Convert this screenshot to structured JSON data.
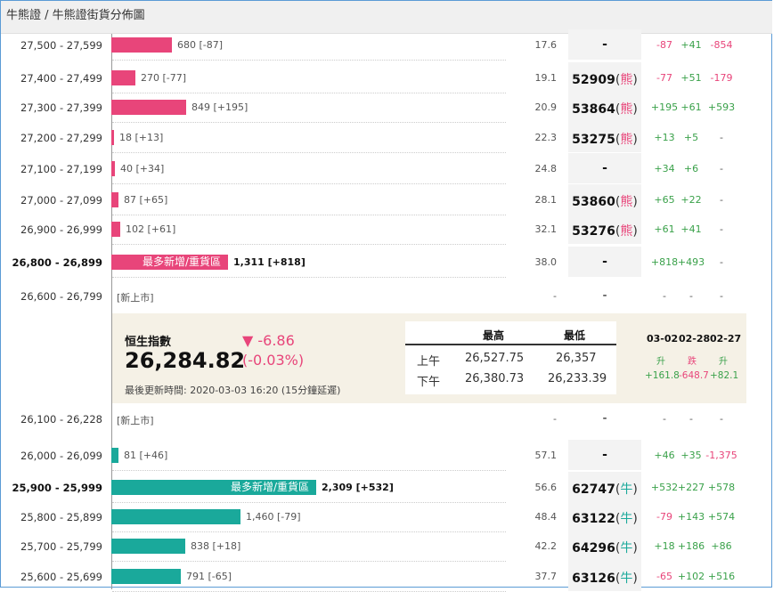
{
  "breadcrumb": "牛熊證 / 牛熊證街貨分佈圖",
  "colors": {
    "bear": "#e8457a",
    "bull": "#1aa99b",
    "up": "#3aa14a",
    "down": "#e8457a",
    "panel": "#f5f1e6"
  },
  "bear_rows": [
    {
      "range": "27,500 - 27,599",
      "count": "680 [-87]",
      "pct": "17.6",
      "code": "-",
      "tag": "",
      "c1": "-87",
      "c2": "+41",
      "c3": "-854",
      "bar_fraction": 0.066
    },
    {
      "range": "27,400 - 27,499",
      "count": "270 [-77]",
      "pct": "19.1",
      "code": "52909",
      "tag": "熊",
      "c1": "-77",
      "c2": "+51",
      "c3": "-179",
      "bar_fraction": 0.026
    },
    {
      "range": "27,300 - 27,399",
      "count": "849 [+195]",
      "pct": "20.9",
      "code": "53864",
      "tag": "熊",
      "c1": "+195",
      "c2": "+61",
      "c3": "+593",
      "bar_fraction": 0.082
    },
    {
      "range": "27,200 - 27,299",
      "count": "18 [+13]",
      "pct": "22.3",
      "code": "53275",
      "tag": "熊",
      "c1": "+13",
      "c2": "+5",
      "c3": "-",
      "bar_fraction": 0.002
    },
    {
      "range": "27,100 - 27,199",
      "count": "40 [+34]",
      "pct": "24.8",
      "code": "-",
      "tag": "",
      "c1": "+34",
      "c2": "+6",
      "c3": "-",
      "bar_fraction": 0.004
    },
    {
      "range": "27,000 - 27,099",
      "count": "87 [+65]",
      "pct": "28.1",
      "code": "53860",
      "tag": "熊",
      "c1": "+65",
      "c2": "+22",
      "c3": "-",
      "bar_fraction": 0.008
    },
    {
      "range": "26,900 - 26,999",
      "count": "102 [+61]",
      "pct": "32.1",
      "code": "53276",
      "tag": "熊",
      "c1": "+61",
      "c2": "+41",
      "c3": "-",
      "bar_fraction": 0.01
    },
    {
      "range": "26,800 - 26,899",
      "count": "1,311 [+818]",
      "pct": "38.0",
      "code": "-",
      "tag": "",
      "c1": "+818",
      "c2": "+493",
      "c3": "-",
      "bar_fraction": 0.127,
      "bar_label": "最多新增/重貨區",
      "bold": true
    }
  ],
  "new_rows": [
    {
      "range": "26,600 - 26,799",
      "label": "[新上市]",
      "pct": "-",
      "code": "-",
      "c1": "-",
      "c2": "-",
      "c3": "-"
    },
    {
      "range": "26,100 - 26,228",
      "label": "[新上市]",
      "pct": "-",
      "code": "-",
      "c1": "-",
      "c2": "-",
      "c3": "-"
    }
  ],
  "bull_rows": [
    {
      "range": "26,000 - 26,099",
      "count": "81 [+46]",
      "pct": "57.1",
      "code": "-",
      "tag": "",
      "c1": "+46",
      "c2": "+35",
      "c3": "-1,375",
      "bar_fraction": 0.008
    },
    {
      "range": "25,900 - 25,999",
      "count": "2,309 [+532]",
      "pct": "56.6",
      "code": "62747",
      "tag": "牛",
      "c1": "+532",
      "c2": "+227",
      "c3": "+578",
      "bar_fraction": 0.223,
      "bar_label": "最多新增/重貨區",
      "bold": true
    },
    {
      "range": "25,800 - 25,899",
      "count": "1,460 [-79]",
      "pct": "48.4",
      "code": "63122",
      "tag": "牛",
      "c1": "-79",
      "c2": "+143",
      "c3": "+574",
      "bar_fraction": 0.141
    },
    {
      "range": "25,700 - 25,799",
      "count": "838 [+18]",
      "pct": "42.2",
      "code": "64296",
      "tag": "牛",
      "c1": "+18",
      "c2": "+186",
      "c3": "+86",
      "bar_fraction": 0.081
    },
    {
      "range": "25,600 - 25,699",
      "count": "791 [-65]",
      "pct": "37.7",
      "code": "63126",
      "tag": "牛",
      "c1": "-65",
      "c2": "+102",
      "c3": "+516",
      "bar_fraction": 0.076
    }
  ],
  "index": {
    "name": "恒生指數",
    "value": "26,284.82",
    "change": "▼ -6.86",
    "change_pct": "(-0.03%)",
    "updated": "最後更新時間: 2020-03-03 16:20 (15分鐘延遲)",
    "high_label": "最高",
    "low_label": "最低",
    "am_label": "上午",
    "pm_label": "下午",
    "am_high": "26,527.75",
    "am_low": "26,357",
    "pm_high": "26,380.73",
    "pm_low": "26,233.39",
    "dates": [
      "03-02",
      "02-28",
      "02-27"
    ],
    "dirs": [
      "升",
      "跌",
      "升"
    ],
    "date_changes": [
      "+161.8",
      "-648.7",
      "+82.1"
    ]
  }
}
